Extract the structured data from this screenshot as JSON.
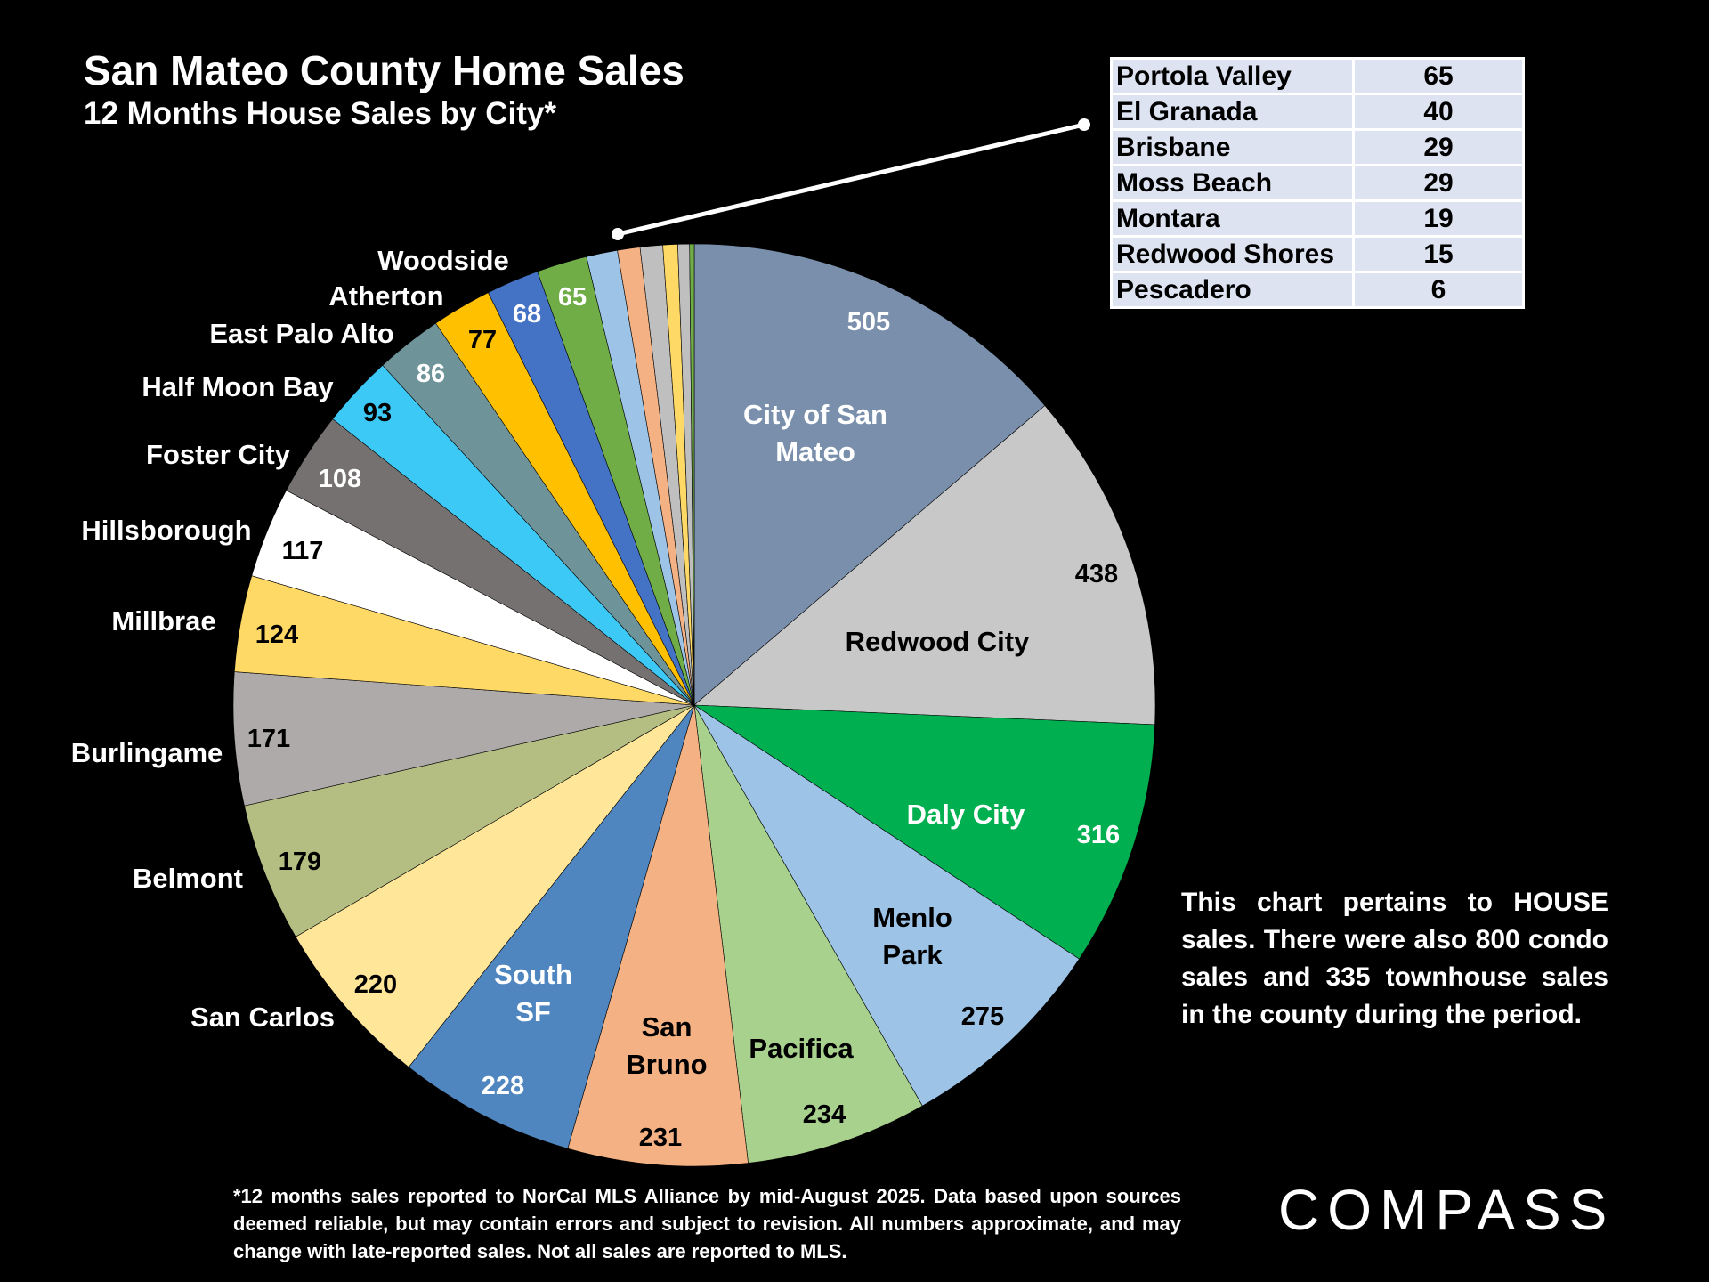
{
  "title": "San Mateo County Home Sales",
  "subtitle": "12 Months House Sales by City*",
  "chart_data": {
    "type": "pie",
    "title": "San Mateo County Home Sales",
    "subtitle": "12 Months House Sales by City*",
    "slices": [
      {
        "name": "City of San Mateo",
        "label_lines": [
          "City of San",
          "Mateo"
        ],
        "value": 505,
        "color": "#7a8fab",
        "name_color": "#ffffff",
        "value_color": "#ffffff"
      },
      {
        "name": "Redwood City",
        "label_lines": [
          "Redwood City"
        ],
        "value": 438,
        "color": "#c8c8c8",
        "name_color": "#000000",
        "value_color": "#000000"
      },
      {
        "name": "Daly City",
        "label_lines": [
          "Daly City"
        ],
        "value": 316,
        "color": "#00b050",
        "name_color": "#ffffff",
        "value_color": "#ffffff"
      },
      {
        "name": "Menlo Park",
        "label_lines": [
          "Menlo",
          "Park"
        ],
        "value": 275,
        "color": "#9dc3e6",
        "name_color": "#000000",
        "value_color": "#000000"
      },
      {
        "name": "Pacifica",
        "label_lines": [
          "Pacifica"
        ],
        "value": 234,
        "color": "#a9d18e",
        "name_color": "#000000",
        "value_color": "#000000"
      },
      {
        "name": "San Bruno",
        "label_lines": [
          "San",
          "Bruno"
        ],
        "value": 231,
        "color": "#f4b183",
        "name_color": "#000000",
        "value_color": "#000000"
      },
      {
        "name": "South SF",
        "label_lines": [
          "South",
          "SF"
        ],
        "value": 228,
        "color": "#4f86bf",
        "name_color": "#ffffff",
        "value_color": "#ffffff"
      },
      {
        "name": "San Carlos",
        "label_lines": [
          "San Carlos"
        ],
        "value": 220,
        "color": "#ffe699",
        "name_color": "#ffffff",
        "value_color": "#000000"
      },
      {
        "name": "Belmont",
        "label_lines": [
          "Belmont"
        ],
        "value": 179,
        "color": "#b5be82",
        "name_color": "#ffffff",
        "value_color": "#000000"
      },
      {
        "name": "Burlingame",
        "label_lines": [
          "Burlingame"
        ],
        "value": 171,
        "color": "#aeaaaa",
        "name_color": "#ffffff",
        "value_color": "#000000"
      },
      {
        "name": "Millbrae",
        "label_lines": [
          "Millbrae"
        ],
        "value": 124,
        "color": "#ffd966",
        "name_color": "#ffffff",
        "value_color": "#000000"
      },
      {
        "name": "Hillsborough",
        "label_lines": [
          "Hillsborough"
        ],
        "value": 117,
        "color": "#ffffff",
        "name_color": "#ffffff",
        "value_color": "#000000"
      },
      {
        "name": "Foster City",
        "label_lines": [
          "Foster City"
        ],
        "value": 108,
        "color": "#767171",
        "name_color": "#ffffff",
        "value_color": "#ffffff"
      },
      {
        "name": "Half Moon Bay",
        "label_lines": [
          "Half Moon Bay"
        ],
        "value": 93,
        "color": "#3dc9f5",
        "name_color": "#ffffff",
        "value_color": "#000000"
      },
      {
        "name": "East Palo Alto",
        "label_lines": [
          "East Palo Alto"
        ],
        "value": 86,
        "color": "#6e9398",
        "name_color": "#ffffff",
        "value_color": "#ffffff"
      },
      {
        "name": "Atherton",
        "label_lines": [
          "Atherton"
        ],
        "value": 77,
        "color": "#ffc000",
        "name_color": "#ffffff",
        "value_color": "#000000"
      },
      {
        "name": "Woodside",
        "label_lines": [
          "Woodside"
        ],
        "value": 68,
        "color": "#4472c4",
        "name_color": "#ffffff",
        "value_color": "#ffffff"
      },
      {
        "name": "Portola Valley",
        "label_lines": [],
        "value": 65,
        "color": "#70ad47",
        "name_color": "#ffffff",
        "value_color": "#ffffff"
      },
      {
        "name": "El Granada",
        "label_lines": [],
        "value": 40,
        "color": "#9dc3e6",
        "name_color": "#ffffff",
        "value_color": "#ffffff"
      },
      {
        "name": "Brisbane",
        "label_lines": [],
        "value": 29,
        "color": "#f4b183",
        "name_color": "#ffffff",
        "value_color": "#ffffff"
      },
      {
        "name": "Moss Beach",
        "label_lines": [],
        "value": 29,
        "color": "#bfbfbf",
        "name_color": "#ffffff",
        "value_color": "#ffffff"
      },
      {
        "name": "Montara",
        "label_lines": [],
        "value": 19,
        "color": "#ffd966",
        "name_color": "#ffffff",
        "value_color": "#ffffff"
      },
      {
        "name": "Redwood Shores",
        "label_lines": [],
        "value": 15,
        "color": "#bfbfbf",
        "name_color": "#ffffff",
        "value_color": "#ffffff"
      },
      {
        "name": "Pescadero",
        "label_lines": [],
        "value": 6,
        "color": "#70ad47",
        "name_color": "#ffffff",
        "value_color": "#ffffff"
      }
    ]
  },
  "small_cities_table": {
    "rows": [
      {
        "name": "Portola Valley",
        "value": "65"
      },
      {
        "name": "El Granada",
        "value": "40"
      },
      {
        "name": "Brisbane",
        "value": "29"
      },
      {
        "name": "Moss Beach",
        "value": "29"
      },
      {
        "name": "Montara",
        "value": "19"
      },
      {
        "name": "Redwood Shores",
        "value": "15"
      },
      {
        "name": "Pescadero",
        "value": "6"
      }
    ]
  },
  "note": "This chart pertains to HOUSE sales. There were also 800 condo sales and 335 townhouse sales in the county during the period.",
  "footnote": "*12 months sales reported to NorCal MLS Alliance by mid-August 2025. Data based upon sources deemed reliable, but may contain errors and subject to revision. All numbers approximate, and may change with late-reported sales. Not all sales are reported to MLS.",
  "logo": "COMPASS"
}
